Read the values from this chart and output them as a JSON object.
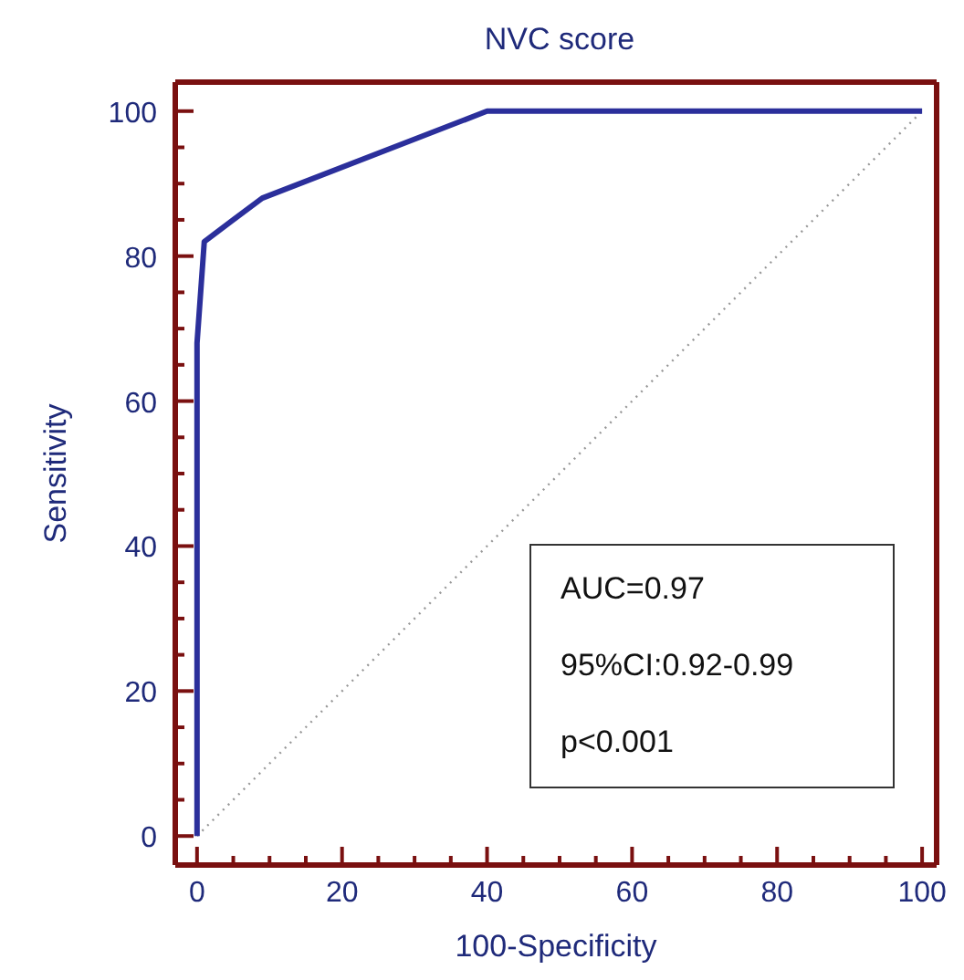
{
  "chart_data": {
    "type": "line",
    "title": "NVC score",
    "xlabel": "100-Specificity",
    "ylabel": "Sensitivity",
    "xlim": [
      -3,
      102
    ],
    "ylim": [
      -4,
      104
    ],
    "xticks": [
      0,
      {
        "value": 5,
        "label": null
      },
      {
        "value": 10,
        "label": null
      },
      {
        "value": 15,
        "label": null
      },
      20,
      {
        "value": 25,
        "label": null
      },
      {
        "value": 30,
        "label": null
      },
      {
        "value": 35,
        "label": null
      },
      40,
      {
        "value": 45,
        "label": null
      },
      {
        "value": 50,
        "label": null
      },
      {
        "value": 55,
        "label": null
      },
      60,
      {
        "value": 65,
        "label": null
      },
      {
        "value": 70,
        "label": null
      },
      {
        "value": 75,
        "label": null
      },
      80,
      {
        "value": 85,
        "label": null
      },
      {
        "value": 90,
        "label": null
      },
      {
        "value": 95,
        "label": null
      },
      100
    ],
    "yticks": [
      0,
      {
        "value": 5,
        "label": null
      },
      {
        "value": 10,
        "label": null
      },
      {
        "value": 15,
        "label": null
      },
      20,
      {
        "value": 25,
        "label": null
      },
      {
        "value": 30,
        "label": null
      },
      {
        "value": 35,
        "label": null
      },
      40,
      {
        "value": 45,
        "label": null
      },
      {
        "value": 50,
        "label": null
      },
      {
        "value": 55,
        "label": null
      },
      60,
      {
        "value": 65,
        "label": null
      },
      {
        "value": 70,
        "label": null
      },
      {
        "value": 75,
        "label": null
      },
      80,
      {
        "value": 85,
        "label": null
      },
      {
        "value": 90,
        "label": null
      },
      {
        "value": 95,
        "label": null
      },
      100
    ],
    "grid": false,
    "series": [
      {
        "color": "#999999",
        "line_style": "dotted",
        "x": [
          0,
          100
        ],
        "values": [
          0,
          100
        ]
      },
      {
        "color": "#2b2f9b",
        "line_style": "solid",
        "x": [
          0,
          0,
          1,
          9,
          40,
          100
        ],
        "values": [
          0,
          68,
          82,
          88,
          100,
          100
        ]
      }
    ],
    "annotations": [
      "AUC=0.97",
      "95%CI:0.92-0.99",
      "p<0.001"
    ]
  }
}
